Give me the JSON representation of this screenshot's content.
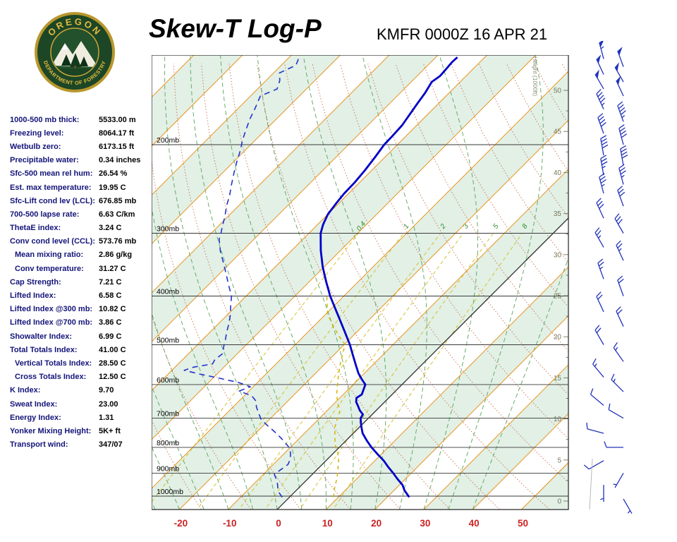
{
  "header": {
    "title": "Skew-T Log-P",
    "station_line": "KMFR 0000Z 16 APR 21",
    "logo": {
      "top_text": "OREGON",
      "bottom_text": "DEPARTMENT OF FORESTRY"
    }
  },
  "indices": [
    {
      "label": "1000-500 mb thick:",
      "value": "5533.00 m"
    },
    {
      "label": "Freezing level:",
      "value": "8064.17 ft"
    },
    {
      "label": "Wetbulb zero:",
      "value": "6173.15 ft"
    },
    {
      "label": "Precipitable water:",
      "value": "0.34 inches"
    },
    {
      "label": "Sfc-500 mean rel hum:",
      "value": "26.54 %"
    },
    {
      "label": "Est. max temperature:",
      "value": "19.95 C"
    },
    {
      "label": "Sfc-Lift cond lev (LCL):",
      "value": "676.85 mb"
    },
    {
      "label": "700-500 lapse rate:",
      "value": "6.63 C/km"
    },
    {
      "label": "ThetaE index:",
      "value": "3.24 C"
    },
    {
      "label": "Conv cond level (CCL):",
      "value": "573.76 mb"
    },
    {
      "label": "Mean mixing ratio:",
      "value": "2.86 g/kg",
      "indent": true
    },
    {
      "label": "Conv temperature:",
      "value": "31.27 C",
      "indent": true
    },
    {
      "label": "Cap Strength:",
      "value": "7.21 C"
    },
    {
      "label": "Lifted Index:",
      "value": "6.58 C"
    },
    {
      "label": "Lifted Index @300 mb:",
      "value": "10.82 C"
    },
    {
      "label": "Lifted Index @700 mb:",
      "value": "3.86 C"
    },
    {
      "label": "Showalter Index:",
      "value": "6.99 C"
    },
    {
      "label": "Total Totals Index:",
      "value": "41.00 C"
    },
    {
      "label": "Vertical Totals Index:",
      "value": "28.50 C",
      "indent": true
    },
    {
      "label": "Cross Totals Index:",
      "value": "12.50 C",
      "indent": true
    },
    {
      "label": "K Index:",
      "value": "9.70"
    },
    {
      "label": "Sweat Index:",
      "value": "23.00"
    },
    {
      "label": "Energy Index:",
      "value": "1.31"
    },
    {
      "label": "Yonker Mixing Height:",
      "value": "5K+ ft"
    },
    {
      "label": "Transport wind:",
      "value": "347/07"
    }
  ],
  "chart_data": {
    "type": "skewt-log-p",
    "title": "Skew-T Log-P",
    "station": "KMFR 0000Z 16 APR 21",
    "temperature_axis": {
      "unit": "C",
      "ticks": [
        -20,
        -10,
        0,
        10,
        20,
        30,
        40,
        50
      ]
    },
    "pressure_axis": {
      "unit": "mb",
      "levels": [
        200,
        300,
        400,
        500,
        600,
        700,
        800,
        900,
        1000
      ]
    },
    "height_axis": {
      "title": "Height (1000ft)",
      "ticks": [
        0,
        5,
        10,
        15,
        20,
        25,
        30,
        35,
        40,
        45,
        50
      ]
    },
    "isotherms": {
      "start": -130,
      "end": 60,
      "step": 10,
      "highlight_zero": true
    },
    "mixing_ratio_lines": {
      "values": [
        0.4,
        1,
        2,
        3,
        5,
        8
      ],
      "labels": [
        "0.4",
        "1",
        "2",
        "3",
        "5",
        "8"
      ]
    },
    "temperature_profile_pt": [
      [
        1005,
        24.5
      ],
      [
        975,
        22.2
      ],
      [
        950,
        20.6
      ],
      [
        925,
        18.4
      ],
      [
        900,
        16.3
      ],
      [
        875,
        14.0
      ],
      [
        850,
        11.8
      ],
      [
        825,
        9.2
      ],
      [
        800,
        6.6
      ],
      [
        775,
        4.2
      ],
      [
        750,
        1.9
      ],
      [
        725,
        0.1
      ],
      [
        700,
        -1.6
      ],
      [
        688,
        -1.9
      ],
      [
        675,
        -3.4
      ],
      [
        660,
        -4.8
      ],
      [
        650,
        -5.8
      ],
      [
        638,
        -6.6
      ],
      [
        628,
        -6.2
      ],
      [
        615,
        -6.8
      ],
      [
        600,
        -7.5
      ],
      [
        585,
        -9.4
      ],
      [
        570,
        -11.2
      ],
      [
        550,
        -13.3
      ],
      [
        525,
        -16.0
      ],
      [
        500,
        -18.8
      ],
      [
        475,
        -22.0
      ],
      [
        450,
        -25.4
      ],
      [
        425,
        -29.0
      ],
      [
        400,
        -32.8
      ],
      [
        375,
        -36.5
      ],
      [
        350,
        -40.3
      ],
      [
        325,
        -44.0
      ],
      [
        300,
        -47.6
      ],
      [
        288,
        -48.9
      ],
      [
        275,
        -50.0
      ],
      [
        260,
        -50.6
      ],
      [
        250,
        -50.9
      ],
      [
        238,
        -51.0
      ],
      [
        225,
        -51.4
      ],
      [
        212,
        -52.0
      ],
      [
        200,
        -52.7
      ],
      [
        192,
        -52.8
      ],
      [
        183,
        -53.0
      ],
      [
        175,
        -53.6
      ],
      [
        166,
        -54.3
      ],
      [
        158,
        -54.9
      ],
      [
        150,
        -55.8
      ],
      [
        146,
        -55.3
      ],
      [
        141,
        -55.5
      ],
      [
        137,
        -55.7
      ],
      [
        134,
        -55.6
      ]
    ],
    "dewpoint_profile_pt": [
      [
        1005,
        -1.5
      ],
      [
        985,
        -3.0
      ],
      [
        965,
        -4.2
      ],
      [
        945,
        -5.2
      ],
      [
        925,
        -6.4
      ],
      [
        905,
        -7.8
      ],
      [
        885,
        -7.4
      ],
      [
        865,
        -7.0
      ],
      [
        845,
        -7.6
      ],
      [
        825,
        -8.6
      ],
      [
        805,
        -9.8
      ],
      [
        785,
        -11.8
      ],
      [
        765,
        -14.0
      ],
      [
        745,
        -16.4
      ],
      [
        725,
        -19.0
      ],
      [
        705,
        -21.6
      ],
      [
        685,
        -23.4
      ],
      [
        665,
        -25.2
      ],
      [
        648,
        -26.4
      ],
      [
        632,
        -28.4
      ],
      [
        618,
        -32.0
      ],
      [
        606,
        -30.6
      ],
      [
        594,
        -34.0
      ],
      [
        582,
        -39.0
      ],
      [
        572,
        -43.5
      ],
      [
        562,
        -47.5
      ],
      [
        554,
        -46.2
      ],
      [
        546,
        -43.0
      ],
      [
        535,
        -43.4
      ],
      [
        520,
        -43.0
      ],
      [
        505,
        -44.2
      ],
      [
        490,
        -45.2
      ],
      [
        472,
        -46.6
      ],
      [
        455,
        -47.8
      ],
      [
        438,
        -49.2
      ],
      [
        420,
        -51.0
      ],
      [
        400,
        -53.0
      ],
      [
        382,
        -55.6
      ],
      [
        363,
        -58.4
      ],
      [
        345,
        -61.2
      ],
      [
        326,
        -64.4
      ],
      [
        308,
        -67.2
      ],
      [
        300,
        -68.0
      ],
      [
        290,
        -69.2
      ],
      [
        278,
        -70.6
      ],
      [
        265,
        -72.4
      ],
      [
        252,
        -74.0
      ],
      [
        240,
        -75.8
      ],
      [
        228,
        -77.6
      ],
      [
        216,
        -79.4
      ],
      [
        205,
        -81.0
      ],
      [
        196,
        -82.6
      ],
      [
        187,
        -84.0
      ],
      [
        178,
        -85.4
      ],
      [
        169,
        -86.6
      ],
      [
        160,
        -88.0
      ],
      [
        155,
        -86.0
      ],
      [
        149,
        -87.2
      ],
      [
        144,
        -88.8
      ],
      [
        139,
        -87.0
      ],
      [
        134,
        -88.0
      ]
    ],
    "wetbulb_profile_pt": [
      [
        1005,
        9.0
      ],
      [
        960,
        7.2
      ],
      [
        920,
        5.8
      ],
      [
        880,
        4.0
      ],
      [
        850,
        2.6
      ],
      [
        820,
        0.8
      ],
      [
        790,
        -1.4
      ],
      [
        760,
        -3.2
      ],
      [
        730,
        -5.0
      ],
      [
        700,
        -6.3
      ],
      [
        677,
        -7.3
      ],
      [
        655,
        -9.2
      ],
      [
        630,
        -11.2
      ],
      [
        600,
        -13.2
      ],
      [
        575,
        -14.9
      ],
      [
        550,
        -16.6
      ],
      [
        525,
        -18.2
      ],
      [
        500,
        -19.8
      ],
      [
        478,
        -23.2
      ],
      [
        455,
        -26.6
      ],
      [
        435,
        -29.6
      ],
      [
        415,
        -31.8
      ],
      [
        400,
        -33.5
      ]
    ],
    "winds_pds": [
      [
        135,
        345,
        55
      ],
      [
        140,
        340,
        52
      ],
      [
        145,
        335,
        50
      ],
      [
        150,
        330,
        50
      ],
      [
        155,
        330,
        48
      ],
      [
        160,
        335,
        48
      ],
      [
        170,
        335,
        45
      ],
      [
        180,
        340,
        45
      ],
      [
        190,
        340,
        42
      ],
      [
        200,
        345,
        40
      ],
      [
        210,
        350,
        40
      ],
      [
        220,
        350,
        38
      ],
      [
        230,
        350,
        35
      ],
      [
        240,
        345,
        35
      ],
      [
        250,
        345,
        35
      ],
      [
        265,
        340,
        32
      ],
      [
        280,
        335,
        30
      ],
      [
        300,
        330,
        30
      ],
      [
        320,
        330,
        27
      ],
      [
        340,
        335,
        25
      ],
      [
        370,
        340,
        25
      ],
      [
        400,
        340,
        22
      ],
      [
        430,
        335,
        20
      ],
      [
        460,
        335,
        20
      ],
      [
        500,
        330,
        18
      ],
      [
        540,
        325,
        15
      ],
      [
        580,
        320,
        15
      ],
      [
        620,
        315,
        15
      ],
      [
        660,
        310,
        12
      ],
      [
        700,
        300,
        12
      ],
      [
        750,
        285,
        10
      ],
      [
        800,
        270,
        10
      ],
      [
        850,
        240,
        8
      ],
      [
        900,
        210,
        7
      ],
      [
        950,
        180,
        5
      ],
      [
        1013,
        150,
        5
      ]
    ],
    "colors": {
      "band": "#e2f0e6",
      "isotherm": "#e8941e",
      "zero_isotherm": "#222222",
      "dry_adiabat": "#cc7050",
      "moist_adiabat": "#5aa55a",
      "mixing_ratio": "#d4c22a",
      "mixing_label": "#2e8b2e",
      "pressure_line": "#3a3a3a",
      "temperature": "#0000c8",
      "dewpoint": "#2233cc",
      "wetbulb": "#d6b400",
      "wind_barb": "#2233bb",
      "height_text": "#77775a",
      "temp_tick": "#cc2222"
    }
  }
}
